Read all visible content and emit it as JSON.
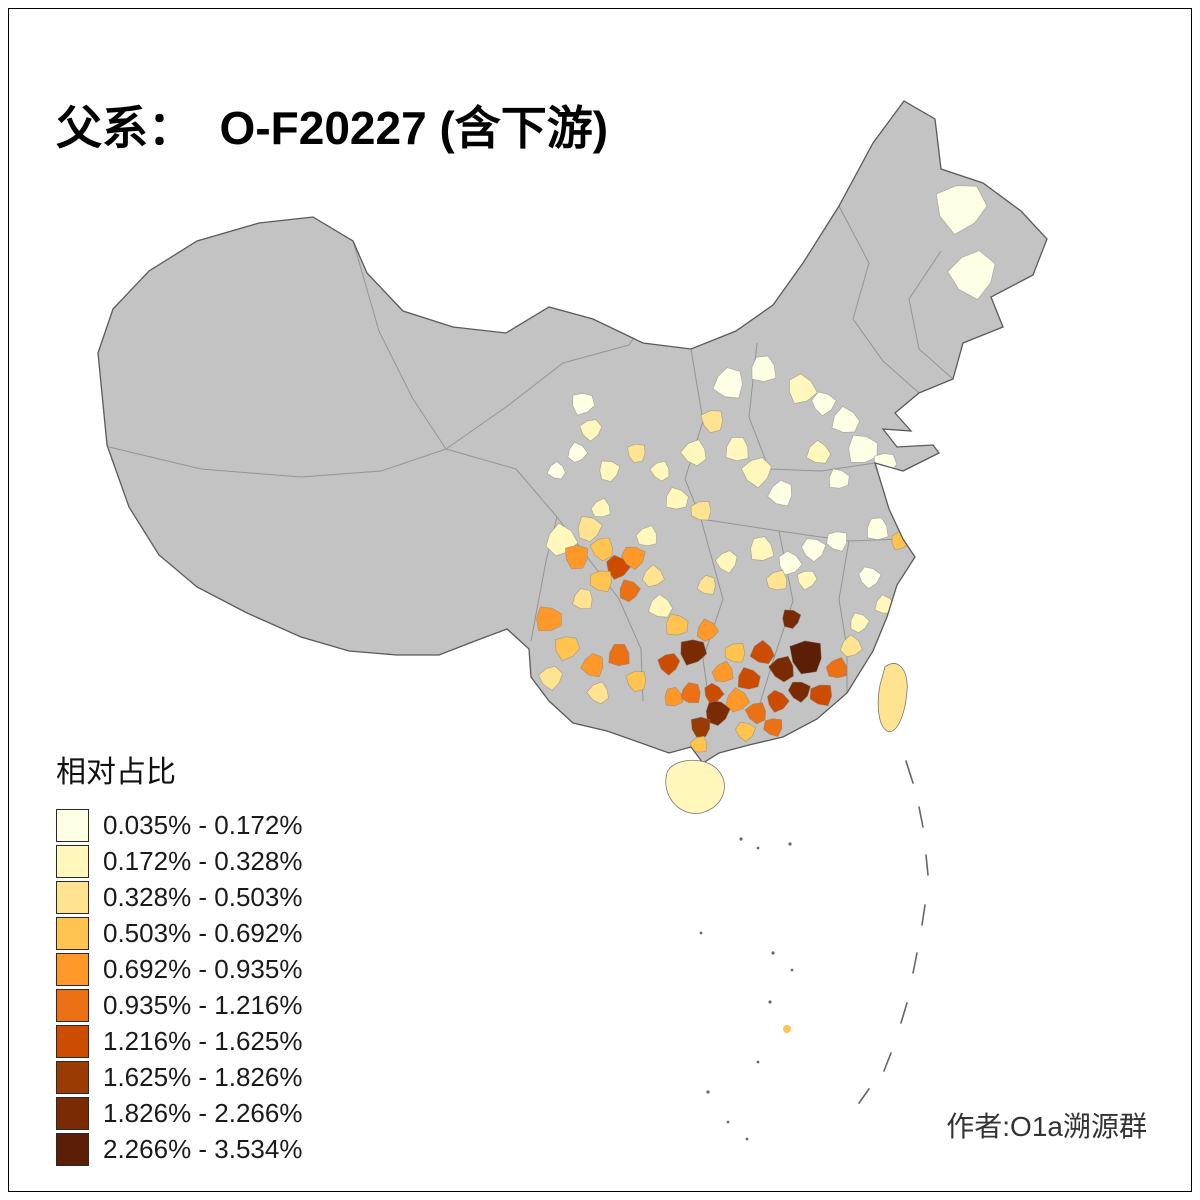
{
  "page": {
    "title": "父系：  O-F20227 (含下游)",
    "author": "作者:O1a溯源群"
  },
  "legend": {
    "title": "相对占比",
    "entries": [
      {
        "label": "0.035% - 0.172%",
        "color": "#FFFFE5"
      },
      {
        "label": "0.172% - 0.328%",
        "color": "#FFF7BC"
      },
      {
        "label": "0.328% - 0.503%",
        "color": "#FEE391"
      },
      {
        "label": "0.503% - 0.692%",
        "color": "#FEC44F"
      },
      {
        "label": "0.692% - 0.935%",
        "color": "#FE9929"
      },
      {
        "label": "0.935% - 1.216%",
        "color": "#EC7014"
      },
      {
        "label": "1.216% - 1.625%",
        "color": "#CC4C02"
      },
      {
        "label": "1.625% - 1.826%",
        "color": "#9A3B03"
      },
      {
        "label": "1.826% - 2.266%",
        "color": "#7A2B03"
      },
      {
        "label": "2.266% - 3.534%",
        "color": "#5C1F05"
      }
    ]
  },
  "map": {
    "no_data_color": "#C3C3C3",
    "border_color": "#5A5A5A",
    "province_border_color": "#949494",
    "background_color": "#FFFFFF"
  }
}
